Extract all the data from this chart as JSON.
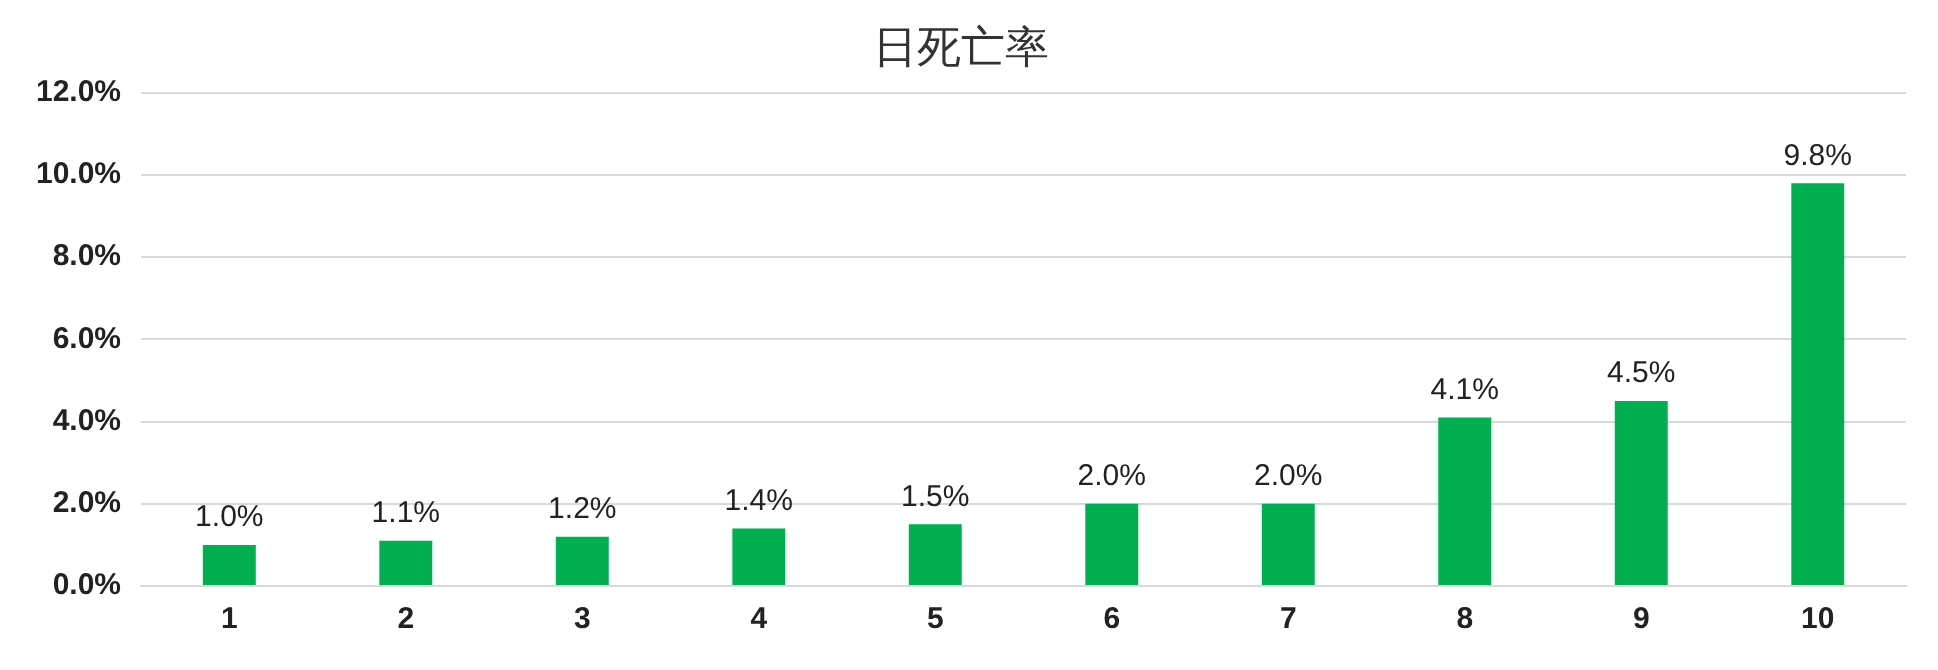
{
  "chart_data": {
    "type": "bar",
    "title": "日死亡率",
    "categories": [
      "1",
      "2",
      "3",
      "4",
      "5",
      "6",
      "7",
      "8",
      "9",
      "10"
    ],
    "values": [
      1.0,
      1.1,
      1.2,
      1.4,
      1.5,
      2.0,
      2.0,
      4.1,
      4.5,
      9.8
    ],
    "value_labels": [
      "1.0%",
      "1.1%",
      "1.2%",
      "1.4%",
      "1.5%",
      "2.0%",
      "2.0%",
      "4.1%",
      "4.5%",
      "9.8%"
    ],
    "color": "#00b050",
    "ylim": [
      0,
      12
    ],
    "yticks": [
      {
        "value": 0,
        "label": "0.0%"
      },
      {
        "value": 2,
        "label": "2.0%"
      },
      {
        "value": 4,
        "label": "4.0%"
      },
      {
        "value": 6,
        "label": "6.0%"
      },
      {
        "value": 8,
        "label": "8.0%"
      },
      {
        "value": 10,
        "label": "10.0%"
      },
      {
        "value": 12,
        "label": "12.0%"
      }
    ],
    "grid": "y",
    "legend": false
  }
}
